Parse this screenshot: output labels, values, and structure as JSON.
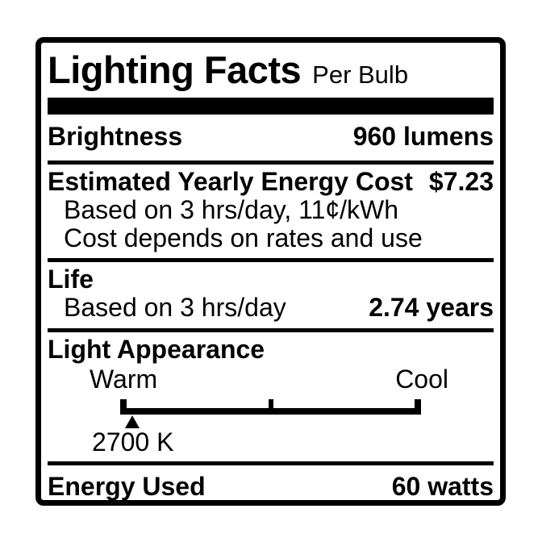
{
  "label": {
    "title": "Lighting Facts",
    "subtitle": "Per Bulb",
    "brightness": {
      "label": "Brightness",
      "value": "960 lumens"
    },
    "energy_cost": {
      "heading": "Estimated Yearly Energy Cost",
      "value": "$7.23",
      "note_basis": "Based on 3 hrs/day, 11¢/kWh",
      "note_disclaimer": "Cost depends on rates and use"
    },
    "life": {
      "heading": "Life",
      "basis": "Based on 3 hrs/day",
      "value": "2.74 years"
    },
    "light_appearance": {
      "heading": "Light Appearance",
      "warm_label": "Warm",
      "cool_label": "Cool",
      "temperature": "2700 K",
      "marker_position_pct": 4
    },
    "energy_used": {
      "label": "Energy Used",
      "value": "60 watts"
    }
  },
  "colors": {
    "ink": "#000000",
    "background": "#ffffff"
  }
}
